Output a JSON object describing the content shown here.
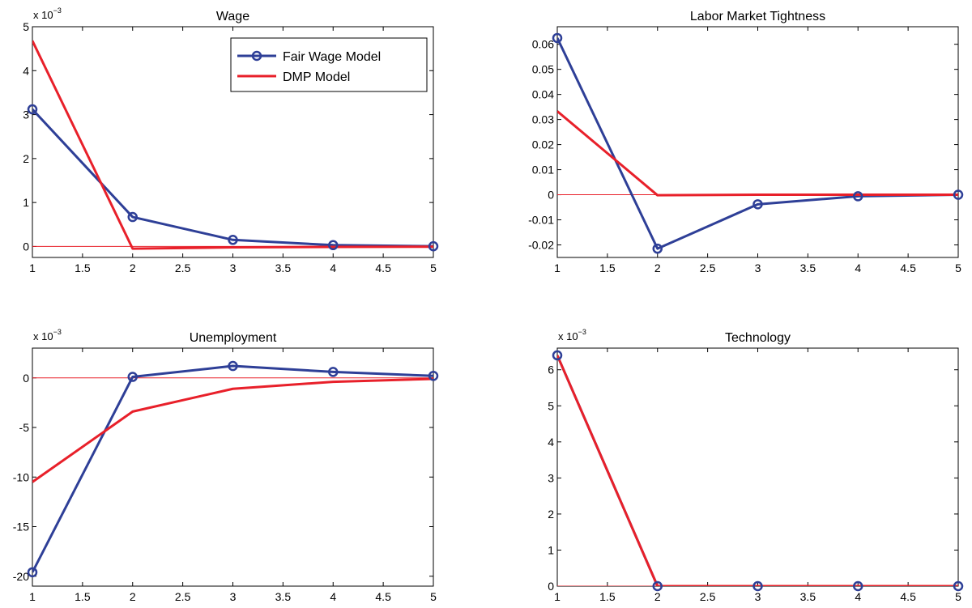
{
  "colors": {
    "fair_wage": "#2e3f97",
    "dmp": "#e8202a",
    "zero_line": "#e8202a",
    "axes": "#000000"
  },
  "legend": {
    "placement": "top-right",
    "panel": 0,
    "entries": [
      {
        "label": "Fair Wage Model",
        "series": 0
      },
      {
        "label": "DMP Model",
        "series": 1
      }
    ]
  },
  "chart_data": [
    {
      "type": "line",
      "title": "Wage",
      "xlabel": "",
      "ylabel": "",
      "multiplier_base": "x 10",
      "multiplier_exp": "−3",
      "x": [
        1,
        2,
        3,
        4,
        5
      ],
      "xlim": [
        1,
        5
      ],
      "ylim": [
        -0.25,
        5
      ],
      "xticks": [
        1,
        1.5,
        2,
        2.5,
        3,
        3.5,
        4,
        4.5,
        5
      ],
      "xtick_labels": [
        "1",
        "1.5",
        "2",
        "2.5",
        "3",
        "3.5",
        "4",
        "4.5",
        "5"
      ],
      "yticks": [
        0,
        1,
        2,
        3,
        4,
        5
      ],
      "ytick_labels": [
        "0",
        "1",
        "2",
        "3",
        "4",
        "5"
      ],
      "zero_line": 0,
      "series": [
        {
          "values": [
            3.12,
            0.67,
            0.15,
            0.03,
            0.005
          ],
          "markers": true
        },
        {
          "values": [
            4.68,
            -0.05,
            -0.02,
            -0.01,
            -0.005
          ],
          "markers": false
        }
      ]
    },
    {
      "type": "line",
      "title": "Labor Market Tightness",
      "xlabel": "",
      "ylabel": "",
      "multiplier_base": "",
      "multiplier_exp": "",
      "x": [
        1,
        2,
        3,
        4,
        5
      ],
      "xlim": [
        1,
        5
      ],
      "ylim": [
        -0.025,
        0.067
      ],
      "xticks": [
        1,
        1.5,
        2,
        2.5,
        3,
        3.5,
        4,
        4.5,
        5
      ],
      "xtick_labels": [
        "1",
        "1.5",
        "2",
        "2.5",
        "3",
        "3.5",
        "4",
        "4.5",
        "5"
      ],
      "yticks": [
        -0.02,
        -0.01,
        0,
        0.01,
        0.02,
        0.03,
        0.04,
        0.05,
        0.06
      ],
      "ytick_labels": [
        "-0.02",
        "-0.01",
        "0",
        "0.01",
        "0.02",
        "0.03",
        "0.04",
        "0.05",
        "0.06"
      ],
      "zero_line": 0,
      "series": [
        {
          "values": [
            0.0625,
            -0.0215,
            -0.0038,
            -0.0006,
            0.0
          ],
          "markers": true
        },
        {
          "values": [
            0.0333,
            -0.0002,
            0.0,
            0.0,
            0.0
          ],
          "markers": false
        }
      ]
    },
    {
      "type": "line",
      "title": "Unemployment",
      "xlabel": "",
      "ylabel": "",
      "multiplier_base": "x 10",
      "multiplier_exp": "−3",
      "x": [
        1,
        2,
        3,
        4,
        5
      ],
      "xlim": [
        1,
        5
      ],
      "ylim": [
        -21,
        3
      ],
      "xticks": [
        1,
        1.5,
        2,
        2.5,
        3,
        3.5,
        4,
        4.5,
        5
      ],
      "xtick_labels": [
        "1",
        "1.5",
        "2",
        "2.5",
        "3",
        "3.5",
        "4",
        "4.5",
        "5"
      ],
      "yticks": [
        -20,
        -15,
        -10,
        -5,
        0
      ],
      "ytick_labels": [
        "-20",
        "-15",
        "-10",
        "-5",
        "0"
      ],
      "zero_line": 0,
      "series": [
        {
          "values": [
            -19.6,
            0.1,
            1.2,
            0.6,
            0.2
          ],
          "markers": true
        },
        {
          "values": [
            -10.5,
            -3.4,
            -1.1,
            -0.4,
            -0.1
          ],
          "markers": false
        }
      ]
    },
    {
      "type": "line",
      "title": "Technology",
      "xlabel": "",
      "ylabel": "",
      "multiplier_base": "x 10",
      "multiplier_exp": "−3",
      "x": [
        1,
        2,
        3,
        4,
        5
      ],
      "xlim": [
        1,
        5
      ],
      "ylim": [
        0,
        6.6
      ],
      "xticks": [
        1,
        1.5,
        2,
        2.5,
        3,
        3.5,
        4,
        4.5,
        5
      ],
      "xtick_labels": [
        "1",
        "1.5",
        "2",
        "2.5",
        "3",
        "3.5",
        "4",
        "4.5",
        "5"
      ],
      "yticks": [
        0,
        1,
        2,
        3,
        4,
        5,
        6
      ],
      "ytick_labels": [
        "0",
        "1",
        "2",
        "3",
        "4",
        "5",
        "6"
      ],
      "zero_line": 0,
      "series": [
        {
          "values": [
            6.4,
            0,
            0,
            0,
            0
          ],
          "markers": true
        },
        {
          "values": [
            6.4,
            0,
            0,
            0,
            0
          ],
          "markers": false
        }
      ]
    }
  ]
}
